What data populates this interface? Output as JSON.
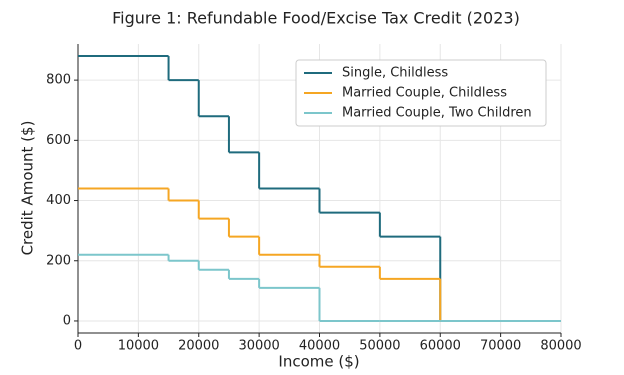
{
  "chart_data": {
    "type": "step",
    "title": "Figure 1: Refundable Food/Excise Tax Credit (2023)",
    "x_label": "Income ($)",
    "y_label": "Credit Amount ($)",
    "x": [
      0,
      15000,
      20000,
      25000,
      30000,
      40000,
      50000,
      60000
    ],
    "series": [
      {
        "name": "Single, Childless",
        "color": "#1f6b7d",
        "values": [
          880,
          800,
          680,
          560,
          440,
          360,
          280,
          0
        ]
      },
      {
        "name": "Married Couple, Childless",
        "color": "#f5a623",
        "values": [
          440,
          400,
          340,
          280,
          220,
          180,
          140,
          0
        ]
      },
      {
        "name": "Married Couple, Two Children",
        "color": "#7cc6cb",
        "values": [
          220,
          200,
          170,
          140,
          110,
          0,
          0,
          0
        ]
      }
    ],
    "xlim": [
      0,
      80000
    ],
    "ylim": [
      -40,
      920
    ],
    "xticks": [
      0,
      10000,
      20000,
      30000,
      40000,
      50000,
      60000,
      70000,
      80000
    ],
    "yticks": [
      0,
      200,
      400,
      600,
      800
    ],
    "grid": true,
    "legend": "upper right"
  }
}
